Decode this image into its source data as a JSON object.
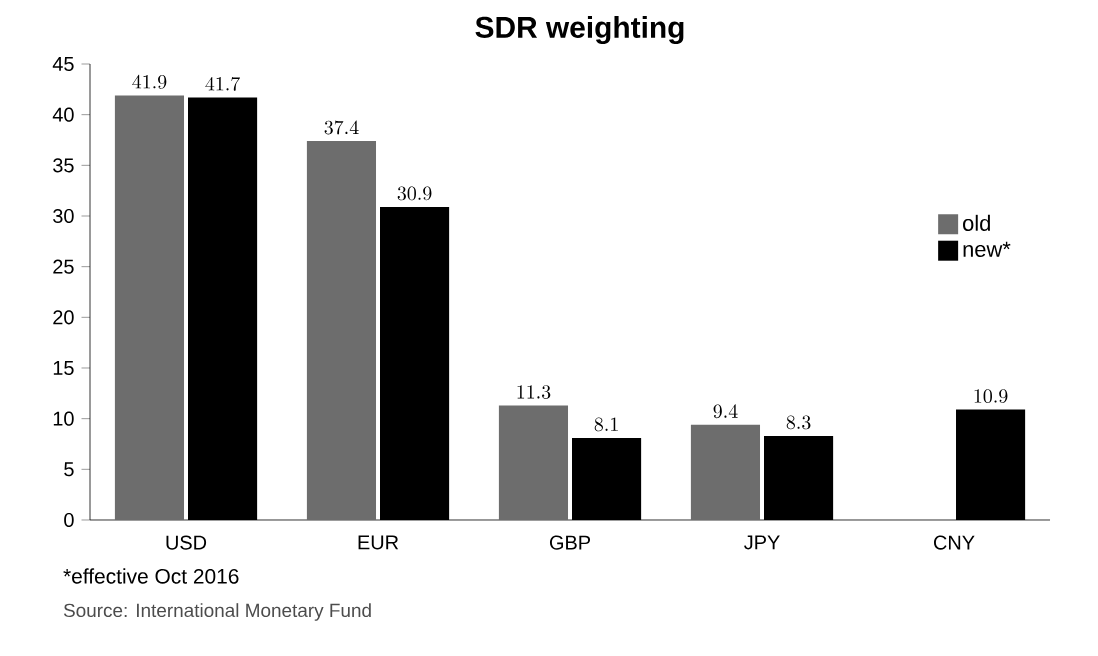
{
  "chart_data": {
    "type": "bar",
    "title": "SDR weighting",
    "categories": [
      "USD",
      "EUR",
      "GBP",
      "JPY",
      "CNY"
    ],
    "series": [
      {
        "name": "old",
        "color": "#6d6d6d",
        "values": [
          41.9,
          37.4,
          11.3,
          9.4,
          null
        ]
      },
      {
        "name": "new*",
        "color": "#000000",
        "values": [
          41.7,
          30.9,
          8.1,
          8.3,
          10.9
        ]
      }
    ],
    "ylim": [
      0,
      45
    ],
    "yticks": [
      0,
      5,
      10,
      15,
      20,
      25,
      30,
      35,
      40,
      45
    ],
    "grid": false,
    "legend": "right",
    "data_labels": true,
    "annotations": [
      "*effective Oct 2016",
      "Source: International Monetary Fund"
    ]
  }
}
